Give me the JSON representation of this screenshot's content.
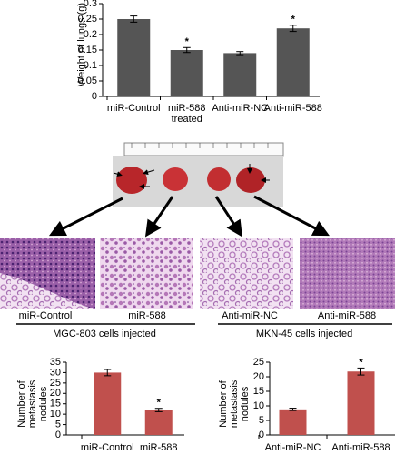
{
  "chart_data": [
    {
      "type": "bar",
      "y_label": "Weight of lungs (g)",
      "color": "#555555",
      "categories": [
        "miR-Control",
        "miR-588 treated",
        "Anti-miR-NC",
        "Anti-miR-588"
      ],
      "values": [
        0.25,
        0.15,
        0.14,
        0.22
      ],
      "errors": [
        0.01,
        0.008,
        0.005,
        0.01
      ],
      "markers": [
        null,
        "*",
        null,
        "*"
      ],
      "ylim": [
        0,
        0.3
      ],
      "yticks": [
        0,
        0.05,
        0.1,
        0.15,
        0.2,
        0.25,
        0.3
      ]
    },
    {
      "type": "bar",
      "y_label": "Number of metastasis nodules",
      "color": "#c0504d",
      "categories": [
        "miR-Control",
        "miR-588"
      ],
      "values": [
        30,
        12
      ],
      "errors": [
        1.5,
        0.8
      ],
      "markers": [
        null,
        "*"
      ],
      "ylim": [
        0,
        35
      ],
      "yticks": [
        0,
        5,
        10,
        15,
        20,
        25,
        30,
        35
      ]
    },
    {
      "type": "bar",
      "y_label": "Number of metastasis nodules",
      "color": "#c0504d",
      "categories": [
        "Anti-miR-NC",
        "Anti-miR-588"
      ],
      "values": [
        8.8,
        21.8
      ],
      "errors": [
        0.4,
        1.2
      ],
      "markers": [
        null,
        "*"
      ],
      "ylim": [
        0,
        25
      ],
      "yticks": [
        0,
        5,
        10,
        15,
        20,
        25
      ]
    }
  ],
  "histology": {
    "panels": [
      "miR-Control",
      "miR-588",
      "Anti-miR-NC",
      "Anti-miR-588"
    ],
    "groups": [
      "MGC-803 cells injected",
      "MKN-45 cells injected"
    ]
  }
}
